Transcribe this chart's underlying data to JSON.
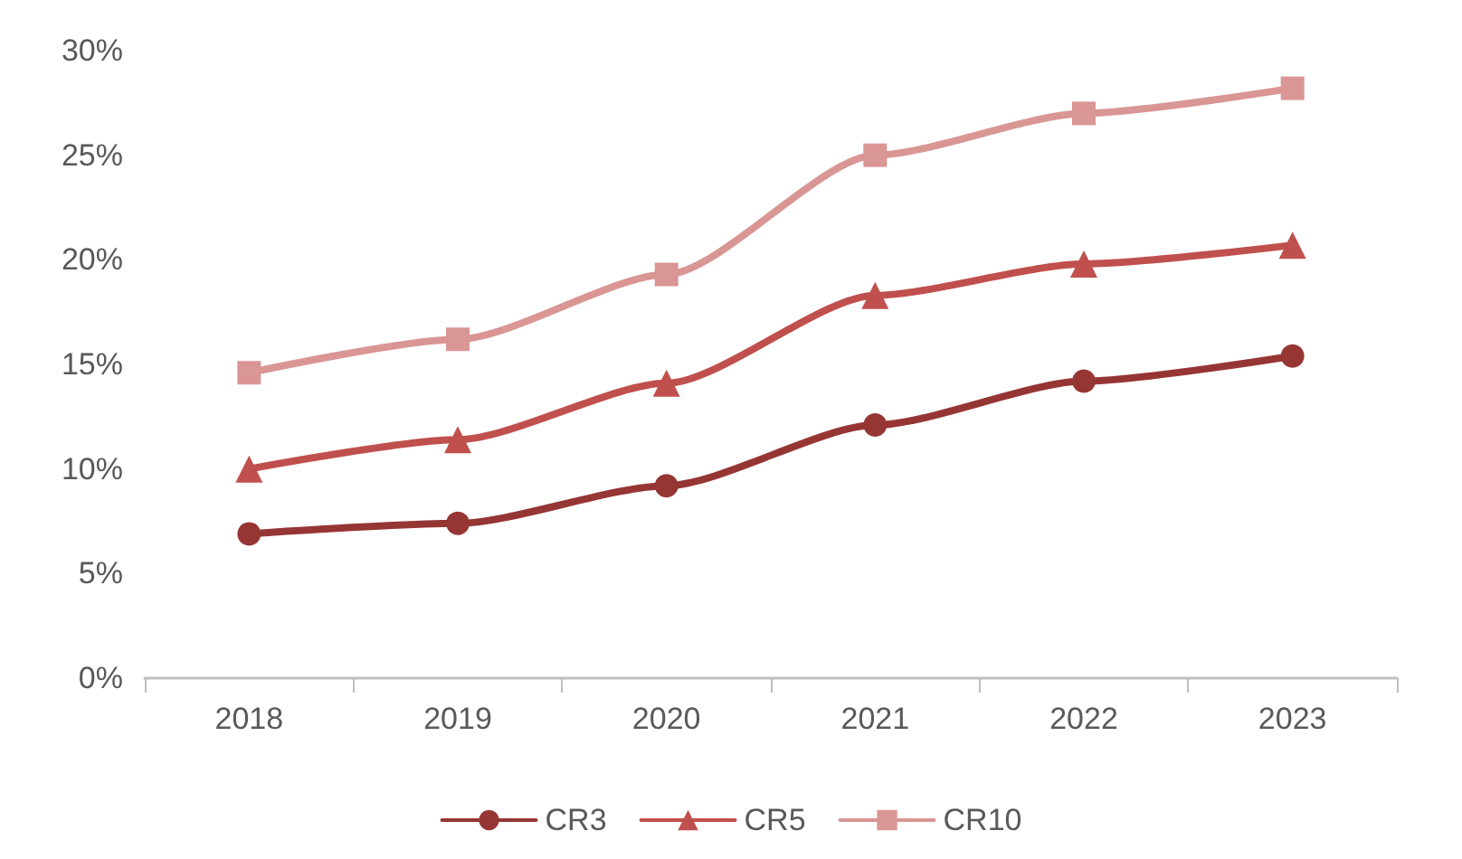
{
  "chart_data": {
    "type": "line",
    "categories": [
      "2018",
      "2019",
      "2020",
      "2021",
      "2022",
      "2023"
    ],
    "series": [
      {
        "name": "CR3",
        "color": "#963634",
        "marker": "circle",
        "values": [
          6.9,
          7.4,
          9.2,
          12.1,
          14.2,
          15.4
        ]
      },
      {
        "name": "CR5",
        "color": "#c0504d",
        "marker": "triangle",
        "values": [
          10.0,
          11.4,
          14.1,
          18.3,
          19.8,
          20.7
        ]
      },
      {
        "name": "CR10",
        "color": "#d99694",
        "marker": "square",
        "values": [
          14.6,
          16.2,
          19.3,
          25.0,
          27.0,
          28.2
        ]
      }
    ],
    "ylim": [
      0,
      30
    ],
    "yticks": [
      {
        "value": 0,
        "label": "0%"
      },
      {
        "value": 5,
        "label": "5%"
      },
      {
        "value": 10,
        "label": "10%"
      },
      {
        "value": 15,
        "label": "15%"
      },
      {
        "value": 20,
        "label": "20%"
      },
      {
        "value": 25,
        "label": "25%"
      },
      {
        "value": 30,
        "label": "30%"
      }
    ],
    "grid": false,
    "legend": "bottom",
    "line_style": "solid"
  }
}
